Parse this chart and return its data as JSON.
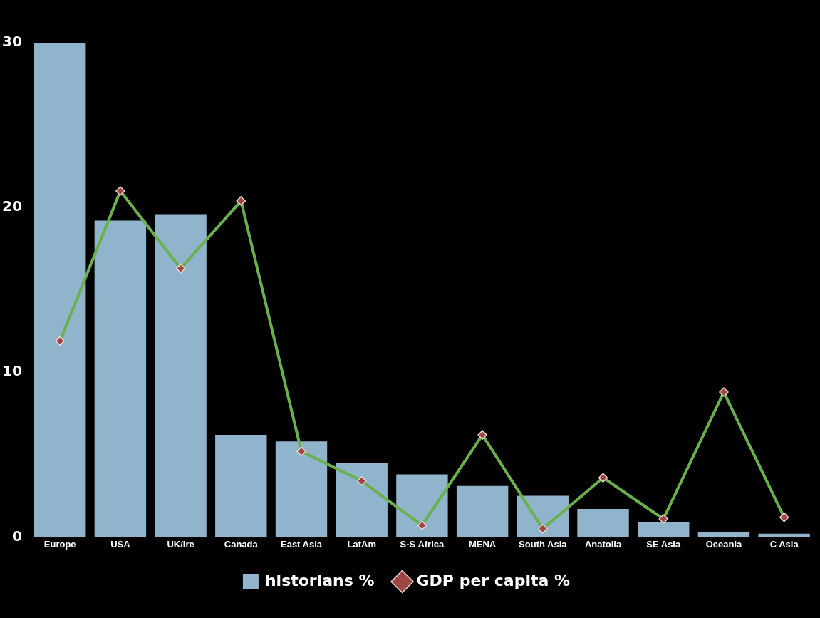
{
  "chart_data": {
    "type": "bar",
    "categories": [
      "Europe",
      "USA",
      "UK/Ire",
      "Canada",
      "East Asia",
      "LatAm",
      "S-S Africa",
      "MENA",
      "South Asia",
      "Anatolia",
      "SE Asia",
      "Oceania",
      "C Asia"
    ],
    "series": [
      {
        "name": "historians %",
        "color": "#8fb4cc",
        "values": [
          30,
          19.2,
          19.6,
          6.2,
          5.8,
          4.5,
          3.8,
          3.1,
          2.5,
          1.7,
          0.9,
          0.3,
          0.2
        ]
      },
      {
        "name": "GDP per capita %",
        "type": "line",
        "color": "#6ab04c",
        "values": [
          11.9,
          21.0,
          16.3,
          20.4,
          5.2,
          3.4,
          0.7,
          6.2,
          0.5,
          3.6,
          1.1,
          8.8,
          1.2
        ]
      }
    ],
    "ylim": [
      0,
      30
    ],
    "yticks": [
      0,
      10,
      20,
      30
    ],
    "grid": false,
    "legend": "bottom",
    "marker": "diamond",
    "line_style": "solid"
  }
}
